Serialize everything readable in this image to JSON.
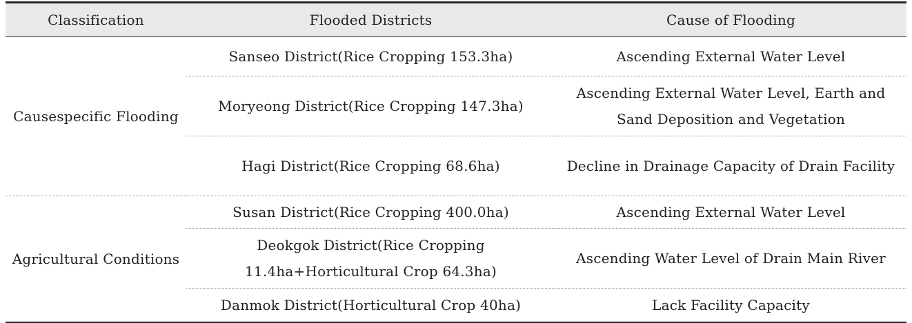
{
  "table": {
    "headers": [
      "Classification",
      "Flooded Districts",
      "Cause of Flooding"
    ],
    "groups": [
      {
        "classification": "Causespecific Flooding",
        "rows": [
          {
            "district": "Sanseo District(Rice Cropping 153.3ha)",
            "cause": "Ascending External Water Level"
          },
          {
            "district": "Moryeong District(Rice Cropping 147.3ha)",
            "cause": "Ascending External Water Level, Earth and Sand Deposition and Vegetation"
          },
          {
            "district": "Hagi District(Rice Cropping 68.6ha)",
            "cause": "Decline in Drainage Capacity of Drain Facility"
          }
        ]
      },
      {
        "classification": "Agricultural Conditions",
        "rows": [
          {
            "district": "Susan District(Rice Cropping 400.0ha)",
            "cause": "Ascending External Water Level"
          },
          {
            "district": "Deokgok District(Rice Cropping 11.4ha+Horticultural Crop 64.3ha)",
            "cause": "Ascending Water Level of Drain Main River"
          },
          {
            "district": "Danmok District(Horticultural Crop 40ha)",
            "cause": "Lack Facility Capacity"
          }
        ]
      }
    ]
  }
}
